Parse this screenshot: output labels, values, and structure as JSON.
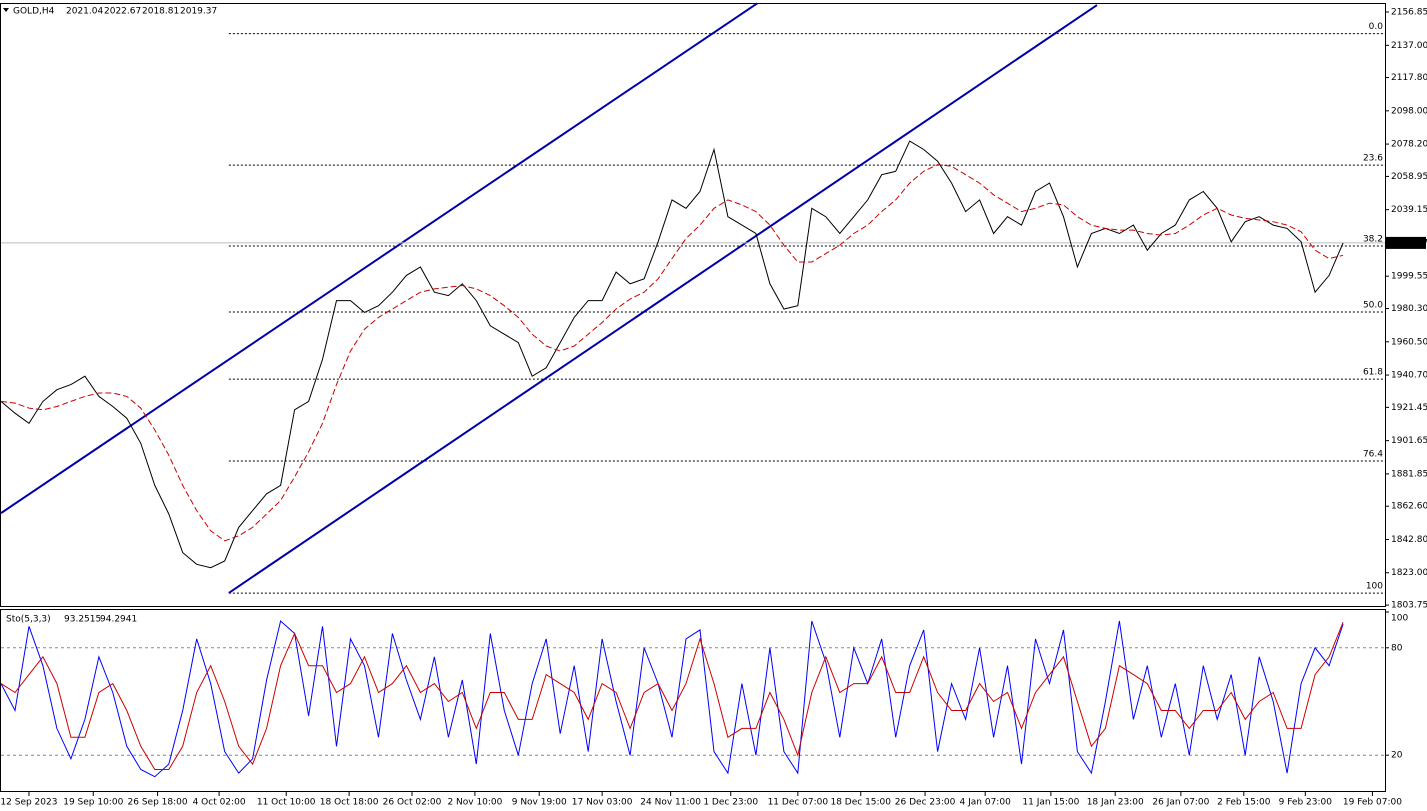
{
  "chart_data": [
    {
      "type": "line",
      "title": "GOLD,H4",
      "header_values": [
        2021.04,
        2022.67,
        2018.81
      ],
      "x": [
        0,
        1,
        2,
        3,
        4,
        5,
        6,
        7,
        8,
        9,
        10,
        11,
        12,
        13,
        14,
        15,
        16,
        17,
        18,
        19,
        20,
        21,
        22,
        23,
        24,
        25,
        26,
        27,
        28,
        29,
        30,
        31,
        32,
        33,
        34,
        35,
        36,
        37,
        38,
        39,
        40,
        41,
        42,
        43,
        44,
        45,
        46,
        47,
        48,
        49,
        50,
        51,
        52,
        53,
        54,
        55,
        56,
        57,
        58,
        59,
        60,
        61,
        62,
        63,
        64,
        65,
        66,
        67,
        68,
        69,
        70,
        71,
        72,
        73,
        74,
        75,
        76,
        77,
        78,
        79,
        80,
        81,
        82,
        83,
        84,
        85,
        86,
        87,
        88,
        89,
        90,
        91,
        92,
        93,
        94,
        95,
        96
      ],
      "series": [
        {
          "color": "#000000",
          "values": [
            1925,
            1918,
            1912,
            1925,
            1932,
            1935,
            1940,
            1928,
            1922,
            1915,
            1900,
            1875,
            1858,
            1835,
            1828,
            1826,
            1830,
            1850,
            1860,
            1870,
            1875,
            1920,
            1925,
            1950,
            1985,
            1985,
            1978,
            1982,
            1990,
            2000,
            2005,
            1990,
            1988,
            1995,
            1985,
            1970,
            1965,
            1960,
            1940,
            1945,
            1960,
            1975,
            1985,
            1985,
            2002,
            1995,
            1998,
            2020,
            2045,
            2040,
            2050,
            2075,
            2035,
            2030,
            2025,
            1995,
            1980,
            1982,
            2040,
            2035,
            2025,
            2035,
            2045,
            2060,
            2062,
            2080,
            2075,
            2068,
            2055,
            2038,
            2045,
            2025,
            2035,
            2030,
            2050,
            2055,
            2035,
            2005,
            2025,
            2028,
            2025,
            2030,
            2015,
            2025,
            2030,
            2045,
            2050,
            2040,
            2020,
            2032,
            2035,
            2030,
            2028,
            2020,
            1990,
            2000,
            2019.37
          ]
        },
        {
          "color": "#cc0000",
          "dashed": true,
          "values": [
            1925,
            1924,
            1921,
            1920,
            1922,
            1925,
            1928,
            1930,
            1930,
            1928,
            1921,
            1908,
            1893,
            1875,
            1860,
            1848,
            1842,
            1845,
            1850,
            1858,
            1866,
            1880,
            1895,
            1912,
            1935,
            1955,
            1968,
            1975,
            1980,
            1985,
            1990,
            1992,
            1993,
            1994,
            1992,
            1988,
            1982,
            1975,
            1965,
            1958,
            1955,
            1958,
            1965,
            1972,
            1980,
            1986,
            1990,
            1998,
            2010,
            2022,
            2030,
            2040,
            2045,
            2042,
            2038,
            2030,
            2018,
            2008,
            2008,
            2013,
            2018,
            2025,
            2030,
            2038,
            2045,
            2055,
            2062,
            2066,
            2065,
            2060,
            2055,
            2048,
            2043,
            2038,
            2040,
            2043,
            2042,
            2035,
            2030,
            2028,
            2027,
            2027,
            2025,
            2024,
            2025,
            2030,
            2036,
            2040,
            2036,
            2034,
            2033,
            2032,
            2030,
            2026,
            2015,
            2010,
            2012
          ]
        }
      ],
      "xlim": [
        0,
        99
      ],
      "ylim": [
        1803.2,
        2162.2
      ],
      "yticks": [
        2156.85,
        {
          "value": 2137,
          "label": "2137.00"
        },
        {
          "value": 2117.8,
          "label": "2117.80"
        },
        {
          "value": 2098,
          "label": "2098.00"
        },
        {
          "value": 2078.2,
          "label": "2078.20"
        },
        2058.95,
        2039.15,
        1999.55,
        {
          "value": 1980.3,
          "label": "1980.30"
        },
        {
          "value": 1960.5,
          "label": "1960.50"
        },
        {
          "value": 1940.7,
          "label": "1940.70"
        },
        1921.45,
        1901.65,
        1881.85,
        {
          "value": 1862.6,
          "label": "1862.60"
        },
        {
          "value": 1842.8,
          "label": "1842.80"
        },
        {
          "value": 1823,
          "label": "1823.00"
        },
        1803.75
      ],
      "xticks": [
        {
          "value": 2.0,
          "label": "12 Sep 2023"
        },
        {
          "value": 6.6,
          "label": "19 Sep 10:00"
        },
        {
          "value": 11.2,
          "label": "26 Sep 18:00"
        },
        {
          "value": 15.6,
          "label": "4 Oct 02:00"
        },
        {
          "value": 20.4,
          "label": "11 Oct 10:00"
        },
        {
          "value": 24.9,
          "label": "18 Oct 18:00"
        },
        {
          "value": 29.4,
          "label": "26 Oct 02:00"
        },
        {
          "value": 33.9,
          "label": "2 Nov 10:00"
        },
        {
          "value": 38.5,
          "label": "9 Nov 19:00"
        },
        {
          "value": 43.0,
          "label": "17 Nov 03:00"
        },
        {
          "value": 47.9,
          "label": "24 Nov 11:00"
        },
        {
          "value": 52.2,
          "label": "1 Dec 23:00"
        },
        {
          "value": 57.0,
          "label": "11 Dec 07:00"
        },
        {
          "value": 61.5,
          "label": "18 Dec 15:00"
        },
        {
          "value": 66.1,
          "label": "26 Dec 23:00"
        },
        {
          "value": 70.4,
          "label": "4 Jan 07:00"
        },
        {
          "value": 75.1,
          "label": "11 Jan 15:00"
        },
        {
          "value": 79.7,
          "label": "18 Jan 23:00"
        },
        {
          "value": 84.4,
          "label": "26 Jan 07:00"
        },
        {
          "value": 88.9,
          "label": "2 Feb 15:00"
        },
        {
          "value": 93.3,
          "label": "9 Feb 23:00"
        },
        {
          "value": 98.1,
          "label": "19 Feb 07:00"
        }
      ],
      "fib_levels": [
        {
          "label": "0.0",
          "value": 2144
        },
        {
          "label": "23.6",
          "value": 2065.7
        },
        {
          "label": "38.2",
          "value": 2017.5
        },
        {
          "label": "50.0",
          "value": 1978.2
        },
        {
          "label": "61.8",
          "value": 1938.3
        },
        {
          "label": "76.4",
          "value": 1889.5
        },
        {
          "label": "100",
          "value": 1810.9
        }
      ],
      "fib_start": 16.3,
      "fib_color": "#000080",
      "channels": [
        {
          "x": [
            0,
            54.1
          ],
          "y": [
            1858.5,
            2162
          ]
        },
        {
          "x": [
            16.3,
            78.4
          ],
          "y": [
            1811,
            2161
          ]
        }
      ],
      "channel_color": "#0000aa"
    },
    {
      "type": "line",
      "title": "Sto(5,3,3)",
      "x": [
        0,
        1,
        2,
        3,
        4,
        5,
        6,
        7,
        8,
        9,
        10,
        11,
        12,
        13,
        14,
        15,
        16,
        17,
        18,
        19,
        20,
        21,
        22,
        23,
        24,
        25,
        26,
        27,
        28,
        29,
        30,
        31,
        32,
        33,
        34,
        35,
        36,
        37,
        38,
        39,
        40,
        41,
        42,
        43,
        44,
        45,
        46,
        47,
        48,
        49,
        50,
        51,
        52,
        53,
        54,
        55,
        56,
        57,
        58,
        59,
        60,
        61,
        62,
        63,
        64,
        65,
        66,
        67,
        68,
        69,
        70,
        71,
        72,
        73,
        74,
        75,
        76,
        77,
        78,
        79,
        80,
        81,
        82,
        83,
        84,
        85,
        86,
        87,
        88,
        89,
        90,
        91,
        92,
        93,
        94,
        95,
        96
      ],
      "series": [
        {
          "color": "#0000ff",
          "values": [
            60,
            45,
            92,
            70,
            35,
            18,
            40,
            75,
            55,
            25,
            12,
            8,
            15,
            45,
            85,
            60,
            22,
            10,
            18,
            62,
            95,
            88,
            42,
            92,
            25,
            85,
            70,
            30,
            88,
            62,
            40,
            75,
            30,
            62,
            15,
            88,
            45,
            20,
            60,
            85,
            32,
            70,
            22,
            85,
            50,
            20,
            80,
            60,
            30,
            85,
            90,
            22,
            10,
            60,
            20,
            80,
            22,
            10,
            95,
            72,
            30,
            80,
            60,
            85,
            30,
            70,
            90,
            22,
            60,
            40,
            80,
            30,
            70,
            15,
            85,
            60,
            90,
            22,
            10,
            50,
            95,
            40,
            70,
            30,
            60,
            20,
            70,
            40,
            65,
            20,
            75,
            50,
            10,
            60,
            80,
            70,
            93.2515
          ]
        },
        {
          "color": "#cc0000",
          "values": [
            60,
            55,
            65,
            75,
            60,
            30,
            30,
            55,
            60,
            45,
            25,
            12,
            12,
            25,
            55,
            70,
            50,
            25,
            15,
            35,
            70,
            88,
            70,
            70,
            55,
            60,
            75,
            55,
            60,
            70,
            55,
            60,
            50,
            55,
            35,
            55,
            55,
            40,
            40,
            65,
            60,
            55,
            40,
            60,
            55,
            35,
            55,
            60,
            45,
            60,
            85,
            60,
            30,
            35,
            35,
            55,
            40,
            20,
            55,
            75,
            55,
            60,
            60,
            75,
            55,
            55,
            75,
            55,
            45,
            45,
            60,
            50,
            55,
            35,
            55,
            65,
            75,
            50,
            25,
            35,
            70,
            65,
            60,
            45,
            45,
            35,
            45,
            45,
            55,
            40,
            50,
            55,
            35,
            35,
            65,
            75,
            94.2941
          ]
        }
      ],
      "xlim": [
        0,
        99
      ],
      "ylim": [
        0,
        100
      ],
      "yticks": [
        100,
        80,
        20
      ]
    }
  ]
}
